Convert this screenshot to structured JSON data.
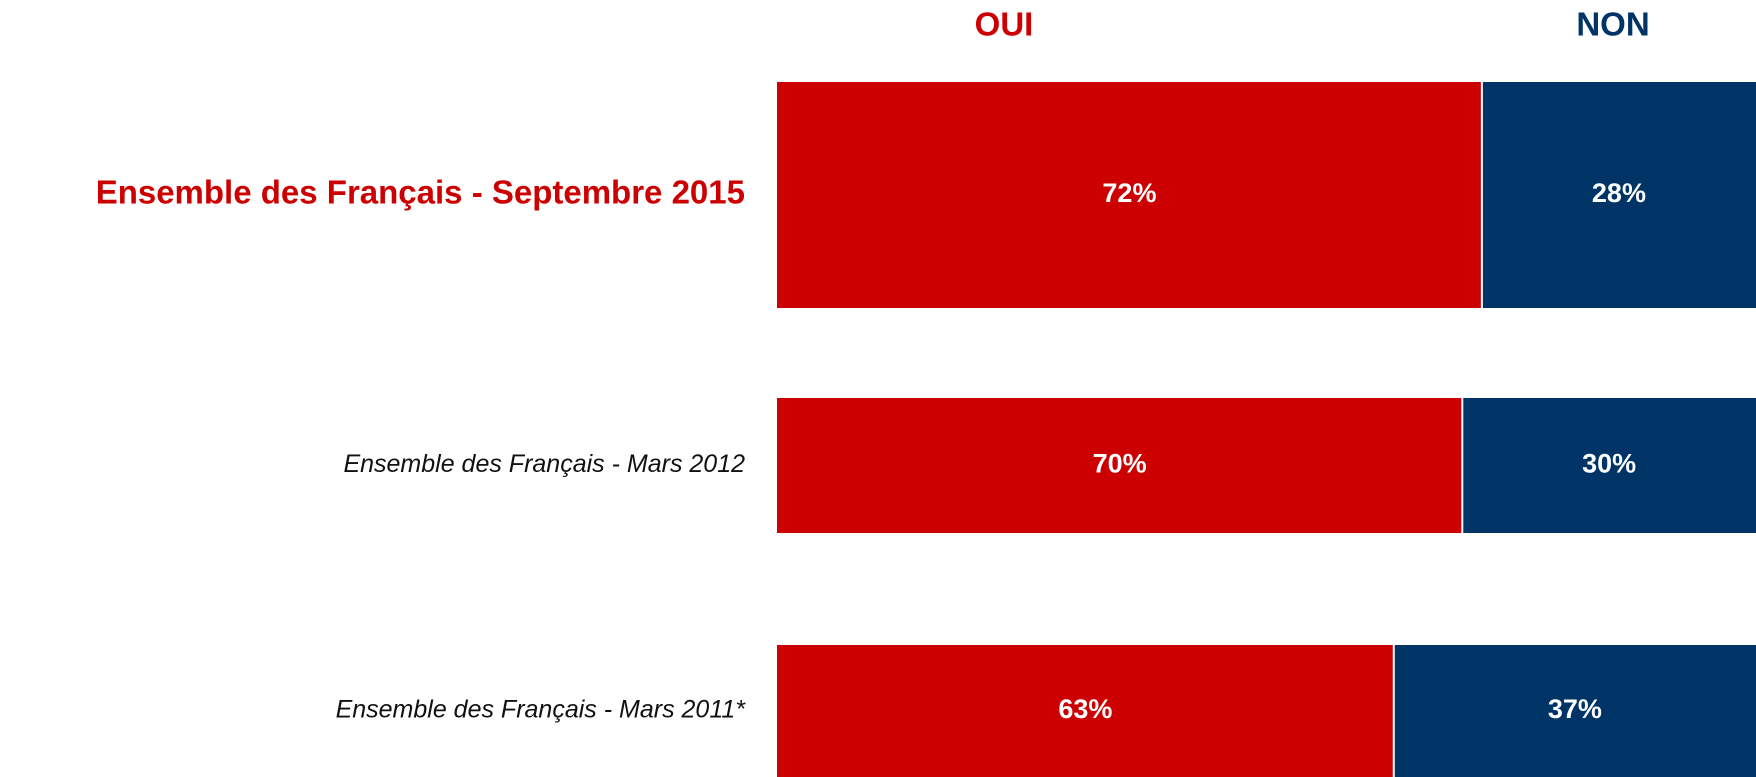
{
  "chart_data": {
    "type": "stacked-bar-horizontal",
    "categories": [
      "Ensemble des Français - Septembre 2015",
      "Ensemble des Français - Mars  2012",
      "Ensemble des Français - Mars 2011*"
    ],
    "series": [
      {
        "name": "OUI",
        "color": "#cc0000",
        "values": [
          72,
          70,
          63
        ],
        "value_labels": [
          "72%",
          "70%",
          "63%"
        ]
      },
      {
        "name": "NON",
        "color": "#003466",
        "values": [
          28,
          30,
          37
        ],
        "value_labels": [
          "28%",
          "30%",
          "37%"
        ]
      }
    ],
    "xlim": [
      0,
      100
    ]
  }
}
